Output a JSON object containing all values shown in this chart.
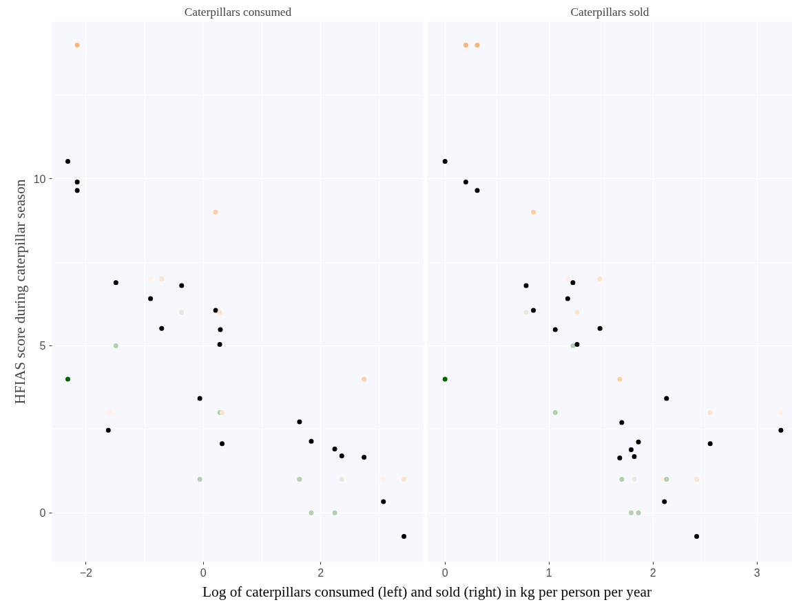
{
  "chart_data": [
    {
      "type": "scatter",
      "title": "Caterpillars consumed",
      "ylabel": "HFIAS score during caterpillar season",
      "xlabel": "Log of caterpillars consumed (left) and sold (right) in kg per person per year",
      "marker": "circle",
      "grid": true,
      "xlim": [
        -2.58,
        3.76
      ],
      "ylim": [
        -1.47,
        14.7
      ],
      "xticks": [
        {
          "value": -2,
          "label": "−2"
        },
        0,
        2
      ],
      "yticks": [
        0,
        5,
        10
      ],
      "x": [
        -2.15,
        -2.31,
        -2.15,
        -2.15,
        0.21,
        -1.49,
        -0.9,
        -0.71,
        -0.37,
        -0.9,
        -0.37,
        0.21,
        0.28,
        -0.71,
        0.29,
        0.28,
        -1.49,
        -2.31,
        -0.06,
        -1.6,
        0.28,
        0.32,
        -1.62,
        0.32,
        -0.06,
        2.74,
        1.64,
        1.84,
        2.24,
        2.36,
        2.74,
        1.64,
        2.36,
        3.07,
        3.42,
        3.07,
        1.84,
        2.24,
        3.42
      ],
      "values": [
        14,
        10.52,
        9.9,
        9.65,
        9,
        6.89,
        7,
        7,
        6.8,
        6.41,
        6,
        6.06,
        6,
        5.52,
        5.48,
        5.04,
        5,
        4,
        3.42,
        3,
        3,
        3,
        2.47,
        2.07,
        1,
        4,
        2.72,
        2.14,
        1.91,
        1.7,
        1.66,
        1,
        1,
        1,
        1,
        0.33,
        0,
        0,
        -0.71
      ],
      "colors": [
        "#fdb474",
        "#000000",
        "#000000",
        "#000000",
        "#fdcfa0",
        "#000000",
        "#fff1e3",
        "#fee3cb",
        "#000000",
        "#000000",
        "#e1ecdc",
        "#000000",
        "#fee3cb",
        "#000000",
        "#000000",
        "#000000",
        "#b3cfad",
        "#006400",
        "#000000",
        "#fff1e3",
        "#b3cfad",
        "#fee3cb",
        "#000000",
        "#000000",
        "#b3cfad",
        "#fdcfa0",
        "#000000",
        "#000000",
        "#000000",
        "#000000",
        "#000000",
        "#b3cfad",
        "#e1ecdc",
        "#fff1e3",
        "#fee3cb",
        "#000000",
        "#b3cfad",
        "#b3cfad",
        "#000000"
      ]
    },
    {
      "type": "scatter",
      "title": "Caterpillars sold",
      "marker": "circle",
      "grid": true,
      "tick_labels": "x",
      "xlim": [
        -0.17,
        3.34
      ],
      "ylim": [
        -1.47,
        14.7
      ],
      "xticks": [
        0,
        1,
        2,
        3
      ],
      "yticks": [
        0,
        5,
        10
      ],
      "x": [
        0.2,
        0.31,
        0,
        0.2,
        0.31,
        0.85,
        1.18,
        1.49,
        1.23,
        0.78,
        1.18,
        0.78,
        0.85,
        1.27,
        1.06,
        1.49,
        1.23,
        1.27,
        0,
        1.06,
        1.68,
        2.13,
        2.55,
        3.23,
        1.7,
        3.23,
        1.86,
        1.79,
        1.82,
        1.68,
        2.55,
        1.7,
        1.82,
        2.1,
        2.13,
        2.42,
        2.11,
        1.79,
        1.86,
        2.42
      ],
      "values": [
        14,
        14,
        10.52,
        9.9,
        9.65,
        9,
        7,
        7,
        6.89,
        6.8,
        6.41,
        6,
        6.06,
        6,
        5.48,
        5.52,
        5,
        5.04,
        4,
        3,
        4,
        3.42,
        3,
        3,
        2.7,
        2.47,
        2.12,
        1.89,
        1.68,
        1.64,
        2.07,
        1,
        1,
        1,
        1,
        1,
        0.33,
        0,
        0,
        -0.71
      ],
      "colors": [
        "#fdb474",
        "#fdb474",
        "#000000",
        "#000000",
        "#000000",
        "#fdcfa0",
        "#fff1e3",
        "#fee3cb",
        "#000000",
        "#000000",
        "#000000",
        "#e1ecdc",
        "#000000",
        "#fee3cb",
        "#000000",
        "#000000",
        "#b3cfad",
        "#000000",
        "#006400",
        "#b3cfad",
        "#fdcfa0",
        "#000000",
        "#fee3cb",
        "#fff1e3",
        "#000000",
        "#000000",
        "#000000",
        "#000000",
        "#000000",
        "#000000",
        "#000000",
        "#b3cfad",
        "#e1ecdc",
        "#fff1e3",
        "#b3cfad",
        "#fee3cb",
        "#000000",
        "#b3cfad",
        "#b3cfad",
        "#000000"
      ]
    }
  ]
}
